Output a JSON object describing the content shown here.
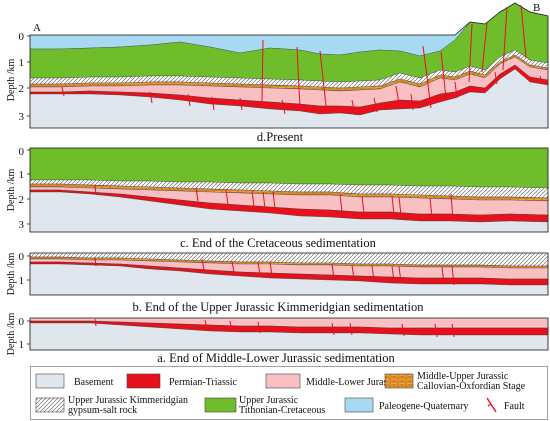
{
  "section_ends": {
    "left": "A",
    "right": "B"
  },
  "panels": {
    "d": {
      "caption": "d.Present",
      "axis_label": "Depth /km",
      "ticks": [
        0,
        1,
        2,
        3
      ]
    },
    "c": {
      "caption": "c. End of the Cretaceous sedimentation",
      "axis_label": "Depth /km",
      "ticks": [
        0,
        1,
        2,
        3
      ]
    },
    "b": {
      "caption": "b. End of the Upper Jurassic Kimmeridgian sedimentation",
      "axis_label": "Depth /km",
      "ticks": [
        0,
        1
      ]
    },
    "a": {
      "caption": "a. End of Middle-Lower Jurassic sedimentation",
      "axis_label": "Depth /km",
      "ticks": [
        0,
        1
      ]
    }
  },
  "legend": {
    "basement": {
      "label": "Basement",
      "color": "#dfe6ed"
    },
    "permian_triassic": {
      "label": "Permian-Triassic",
      "color": "#e8101a"
    },
    "middle_lower_jurassic": {
      "label": "Middle-Lower Jurassic",
      "color": "#f8c0c3"
    },
    "callovian_oxfordian": {
      "label_line1": "Middle-Upper Jurassic",
      "label_line2": "Callovian-Oxfordian Stage",
      "color": "#f0a03a",
      "icon": "brick-pattern-icon"
    },
    "kimmeridgian_salt": {
      "label_line1": "Upper Jurassic Kimmeridgian",
      "label_line2": "gypsum-salt rock",
      "icon": "diagonal-hatch-icon"
    },
    "tithonian_cretaceous": {
      "label_line1": "Upper Jurassic",
      "label_line2": "Tithonian-Cretaceous",
      "color": "#70bd2c"
    },
    "paleogene_quaternary": {
      "label": "Paleogene-Quaternary",
      "color": "#a7d9f3"
    },
    "fault": {
      "label": "Fault",
      "color": "#e8101a",
      "icon": "fault-line-icon"
    }
  }
}
